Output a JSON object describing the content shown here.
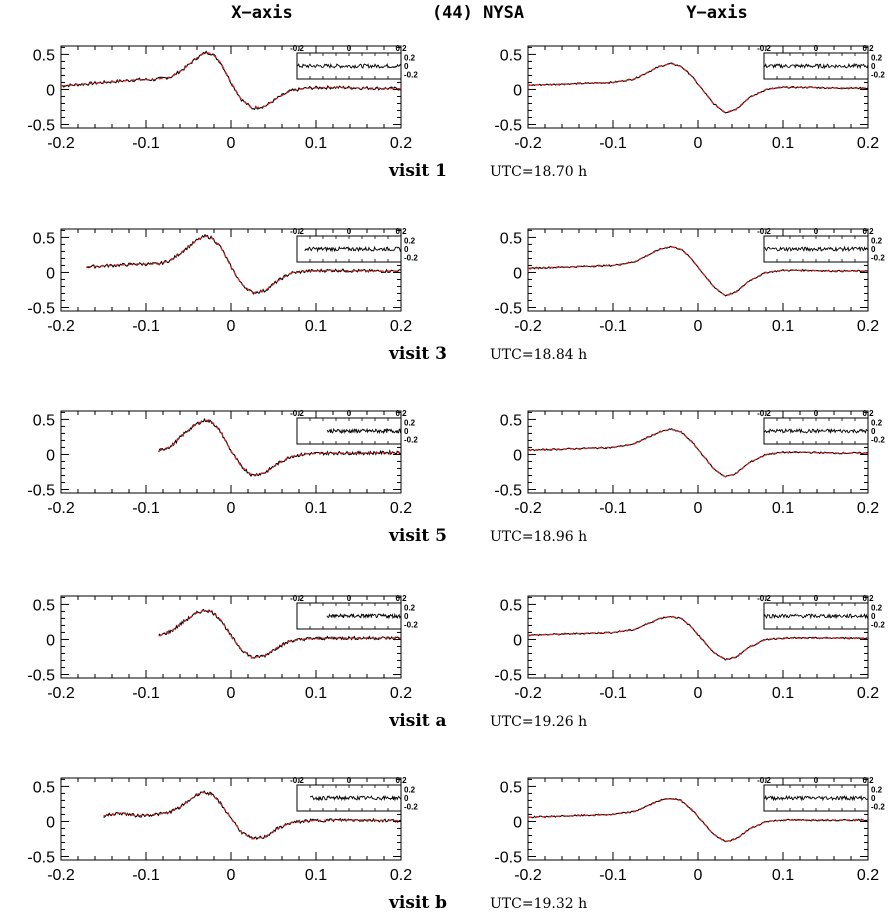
{
  "header": {
    "left": "X−axis",
    "center": "(44) NYSA",
    "right": "Y−axis"
  },
  "chart_data": {
    "type": "line",
    "description_axes": {
      "xlim": [
        -0.2,
        0.2
      ],
      "ylim": [
        -0.55,
        0.62
      ],
      "x_ticks": [
        "-0.2",
        "-0.1",
        "0",
        "0.1",
        "0.2"
      ],
      "y_ticks": [
        "0.5",
        "0",
        "-0.5"
      ],
      "inset_x_ticks": [
        "-0.2",
        "0",
        "0.2"
      ],
      "inset_y_ticks": [
        "0.2",
        "0",
        "-0.2"
      ]
    },
    "series_styles": {
      "observed": "#000000",
      "model": "#e0201b"
    },
    "visits": [
      {
        "label": "visit 1",
        "utc": "UTC=18.70 h",
        "x_axis": {
          "x": [
            -0.2,
            -0.17,
            -0.14,
            -0.11,
            -0.09,
            -0.07,
            -0.055,
            -0.04,
            -0.03,
            -0.022,
            -0.012,
            0,
            0.012,
            0.025,
            0.04,
            0.055,
            0.07,
            0.09,
            0.12,
            0.16,
            0.2
          ],
          "y": [
            0.05,
            0.08,
            0.11,
            0.14,
            0.14,
            0.18,
            0.3,
            0.45,
            0.53,
            0.51,
            0.38,
            0.1,
            -0.14,
            -0.27,
            -0.24,
            -0.12,
            -0.02,
            0.02,
            0.03,
            0.02,
            0.01
          ]
        },
        "y_axis": {
          "x": [
            -0.2,
            -0.15,
            -0.1,
            -0.075,
            -0.06,
            -0.045,
            -0.032,
            -0.02,
            -0.008,
            0.005,
            0.018,
            0.032,
            0.045,
            0.06,
            0.08,
            0.1,
            0.13,
            0.16,
            0.2
          ],
          "y": [
            0.06,
            0.08,
            0.1,
            0.15,
            0.24,
            0.33,
            0.37,
            0.33,
            0.2,
            0.0,
            -0.2,
            -0.33,
            -0.28,
            -0.12,
            0.0,
            0.03,
            0.03,
            0.02,
            0.02
          ]
        }
      },
      {
        "label": "visit 3",
        "utc": "UTC=18.84 h",
        "x_axis": {
          "x": [
            -0.17,
            -0.14,
            -0.11,
            -0.085,
            -0.07,
            -0.055,
            -0.04,
            -0.03,
            -0.022,
            -0.012,
            0,
            0.012,
            0.025,
            0.04,
            0.055,
            0.07,
            0.09,
            0.12,
            0.16,
            0.2
          ],
          "y": [
            0.08,
            0.1,
            0.12,
            0.12,
            0.18,
            0.32,
            0.46,
            0.52,
            0.49,
            0.36,
            0.08,
            -0.16,
            -0.29,
            -0.26,
            -0.12,
            -0.01,
            0.02,
            0.03,
            0.02,
            0.02
          ]
        },
        "y_axis": {
          "x": [
            -0.2,
            -0.15,
            -0.1,
            -0.075,
            -0.06,
            -0.045,
            -0.032,
            -0.02,
            -0.008,
            0.005,
            0.018,
            0.032,
            0.045,
            0.06,
            0.08,
            0.1,
            0.13,
            0.16,
            0.2
          ],
          "y": [
            0.06,
            0.08,
            0.1,
            0.15,
            0.24,
            0.33,
            0.37,
            0.33,
            0.2,
            0.0,
            -0.2,
            -0.33,
            -0.28,
            -0.12,
            0.0,
            0.03,
            0.03,
            0.02,
            0.02
          ]
        }
      },
      {
        "label": "visit 5",
        "utc": "UTC=18.96 h",
        "x_axis": {
          "x": [
            -0.085,
            -0.07,
            -0.055,
            -0.04,
            -0.03,
            -0.022,
            -0.012,
            0,
            0.012,
            0.025,
            0.04,
            0.055,
            0.07,
            0.09,
            0.12,
            0.16,
            0.2
          ],
          "y": [
            0.05,
            0.12,
            0.3,
            0.44,
            0.49,
            0.46,
            0.32,
            0.05,
            -0.17,
            -0.3,
            -0.26,
            -0.13,
            -0.03,
            0.01,
            0.02,
            0.02,
            0.03
          ]
        },
        "y_axis": {
          "x": [
            -0.2,
            -0.15,
            -0.1,
            -0.075,
            -0.06,
            -0.045,
            -0.032,
            -0.02,
            -0.008,
            0.005,
            0.018,
            0.032,
            0.045,
            0.06,
            0.08,
            0.1,
            0.13,
            0.16,
            0.2
          ],
          "y": [
            0.06,
            0.08,
            0.1,
            0.15,
            0.24,
            0.32,
            0.36,
            0.32,
            0.19,
            0.0,
            -0.2,
            -0.32,
            -0.27,
            -0.12,
            0.0,
            0.03,
            0.03,
            0.02,
            0.02
          ]
        }
      },
      {
        "label": "visit a",
        "utc": "UTC=19.26 h",
        "x_axis": {
          "x": [
            -0.085,
            -0.07,
            -0.055,
            -0.04,
            -0.03,
            -0.022,
            -0.012,
            0,
            0.012,
            0.025,
            0.04,
            0.055,
            0.07,
            0.09,
            0.12,
            0.16,
            0.2
          ],
          "y": [
            0.05,
            0.12,
            0.26,
            0.38,
            0.42,
            0.39,
            0.28,
            0.05,
            -0.14,
            -0.26,
            -0.23,
            -0.11,
            -0.02,
            0.01,
            0.02,
            0.02,
            0.02
          ]
        },
        "y_axis": {
          "x": [
            -0.2,
            -0.15,
            -0.1,
            -0.075,
            -0.06,
            -0.045,
            -0.032,
            -0.02,
            -0.008,
            0.005,
            0.018,
            0.032,
            0.045,
            0.06,
            0.08,
            0.1,
            0.13,
            0.16,
            0.2
          ],
          "y": [
            0.06,
            0.08,
            0.1,
            0.14,
            0.22,
            0.3,
            0.33,
            0.3,
            0.18,
            0.0,
            -0.18,
            -0.29,
            -0.25,
            -0.11,
            0.0,
            0.02,
            0.02,
            0.02,
            0.02
          ]
        }
      },
      {
        "label": "visit b",
        "utc": "UTC=19.32 h",
        "x_axis": {
          "x": [
            -0.15,
            -0.13,
            -0.11,
            -0.09,
            -0.075,
            -0.06,
            -0.045,
            -0.035,
            -0.025,
            -0.015,
            0,
            0.012,
            0.025,
            0.04,
            0.055,
            0.07,
            0.09,
            0.12,
            0.16,
            0.2
          ],
          "y": [
            0.08,
            0.12,
            0.08,
            0.1,
            0.12,
            0.2,
            0.34,
            0.42,
            0.4,
            0.3,
            0.05,
            -0.15,
            -0.25,
            -0.22,
            -0.1,
            -0.02,
            0.01,
            0.02,
            0.02,
            0.01
          ]
        },
        "y_axis": {
          "x": [
            -0.2,
            -0.15,
            -0.1,
            -0.075,
            -0.06,
            -0.045,
            -0.032,
            -0.02,
            -0.008,
            0.005,
            0.018,
            0.032,
            0.045,
            0.06,
            0.08,
            0.1,
            0.13,
            0.16,
            0.2
          ],
          "y": [
            0.06,
            0.08,
            0.1,
            0.14,
            0.22,
            0.3,
            0.33,
            0.3,
            0.18,
            0.0,
            -0.18,
            -0.29,
            -0.25,
            -0.11,
            0.0,
            0.02,
            0.02,
            0.02,
            0.02
          ]
        }
      }
    ]
  }
}
